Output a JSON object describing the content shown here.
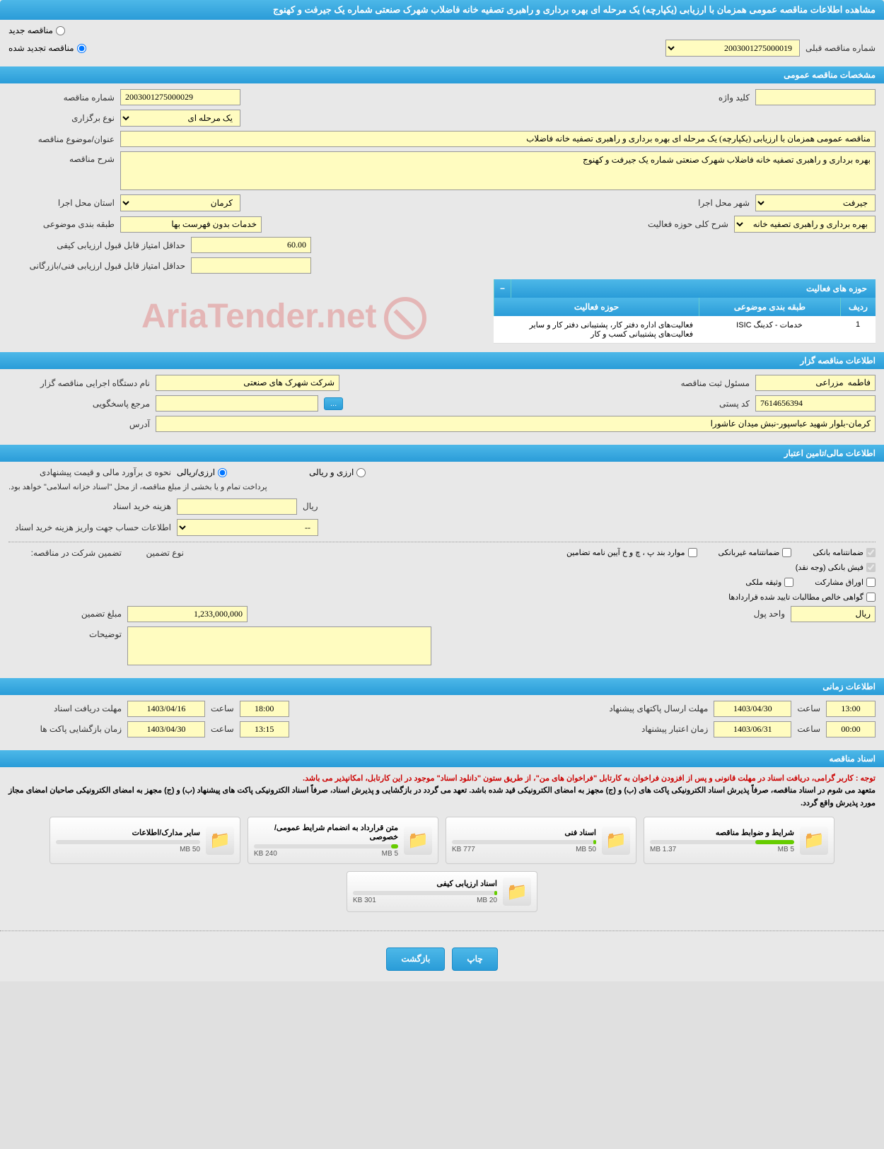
{
  "page_title": "مشاهده اطلاعات مناقصه عمومی همزمان با ارزیابی (یکپارچه) یک مرحله ای بهره برداری و راهبری تصفیه خانه فاضلاب شهرک صنعتی شماره یک جیرفت و کهنوج",
  "top": {
    "radio_new": "مناقصه جدید",
    "radio_renewed": "مناقصه تجدید شده",
    "prev_number_label": "شماره مناقصه قبلی",
    "prev_number": "2003001275000019"
  },
  "section_general": {
    "title": "مشخصات مناقصه عمومی",
    "tender_number_label": "شماره مناقصه",
    "tender_number": "2003001275000029",
    "keyword_label": "کلید واژه",
    "keyword": "",
    "type_label": "نوع برگزاری",
    "type_value": "یک مرحله ای",
    "subject_label": "عنوان/موضوع مناقصه",
    "subject": "مناقصه عمومی همزمان با ارزیابی (یکپارچه) یک مرحله ای بهره برداری و راهبری تصفیه خانه فاضلاب",
    "description_label": "شرح مناقصه",
    "description": "بهره برداری و راهبری تصفیه خانه فاضلاب شهرک صنعتی شماره یک جیرفت و کهنوج",
    "province_label": "استان محل اجرا",
    "province": "کرمان",
    "city_label": "شهر محل اجرا",
    "city": "جیرفت",
    "classification_label": "طبقه بندی موضوعی",
    "classification": "خدمات بدون فهرست بها",
    "activity_scope_label": "شرح کلی حوزه فعالیت",
    "activity_scope": "بهره برداری و راهبری تصفیه خانه فاضلاب شهرک",
    "min_quality_score_label": "حداقل امتیاز قابل قبول ارزیابی کیفی",
    "min_quality_score": "60.00",
    "min_tech_score_label": "حداقل امتیاز قابل قبول ارزیابی فنی/بازرگانی",
    "min_tech_score": ""
  },
  "activity_table": {
    "header": "حوزه های فعالیت",
    "col_row": "ردیف",
    "col_classification": "طبقه بندی موضوعی",
    "col_activity": "حوزه فعالیت",
    "rows": [
      {
        "n": "1",
        "classification": "خدمات - کدینگ ISIC",
        "activity": "فعالیت‌های  اداره دفتر کار، پشتیبانی دفتر کار و سایر فعالیت‌های پشتیبانی کسب و کار"
      }
    ]
  },
  "section_organizer": {
    "title": "اطلاعات مناقصه گزار",
    "org_label": "نام دستگاه اجرایی مناقصه گزار",
    "org": "شرکت شهرک های صنعتی",
    "responsible_label": "مسئول ثبت مناقصه",
    "responsible": "فاطمه  مزراعی",
    "responder_label": "مرجع پاسخگویی",
    "postal_label": "کد پستی",
    "postal": "7614656394",
    "address_label": "آدرس",
    "address": "کرمان-بلوار شهید عباسپور-نبش میدان عاشورا"
  },
  "section_financial": {
    "title": "اطلاعات مالی/تامین اعتبار",
    "price_method_label": "نحوه ی برآورد مالی و قیمت پیشنهادی",
    "radio_rial": "ارزی/ریالی",
    "radio_currency": "ارزی و ریالی",
    "payment_note": "پرداخت تمام و یا بخشی از مبلغ مناقصه، از محل \"اسناد خزانه اسلامی\" خواهد بود.",
    "doc_cost_label": "هزینه خرید اسناد",
    "currency_unit": "ریال",
    "account_info_label": "اطلاعات حساب جهت واریز هزینه خرید اسناد",
    "account_select": "--",
    "guarantee_label": "تضمین شرکت در مناقصه:",
    "guarantee_type_label": "نوع تضمین",
    "chk_bank_guarantee": "ضمانتنامه بانکی",
    "chk_nonbank_guarantee": "ضمانتنامه غیربانکی",
    "chk_items": "موارد بند پ ، چ و خ آیین نامه تضامین",
    "chk_cash": "فیش بانکی (وجه نقد)",
    "chk_bonds": "اوراق مشارکت",
    "chk_property": "وثیقه ملکی",
    "chk_receivables": "گواهی خالص مطالبات تایید شده قراردادها",
    "guarantee_amount_label": "مبلغ تضمین",
    "guarantee_amount": "1,233,000,000",
    "money_unit_label": "واحد پول",
    "money_unit": "ریال",
    "notes_label": "توضیحات"
  },
  "section_time": {
    "title": "اطلاعات زمانی",
    "receive_deadline_label": "مهلت دریافت اسناد",
    "receive_date": "1403/04/16",
    "receive_time": "18:00",
    "submit_deadline_label": "مهلت ارسال پاکتهای پیشنهاد",
    "submit_date": "1403/04/30",
    "submit_time": "13:00",
    "opening_label": "زمان بازگشایی پاکت ها",
    "opening_date": "1403/04/30",
    "opening_time": "13:15",
    "validity_label": "زمان اعتبار پیشنهاد",
    "validity_date": "1403/06/31",
    "validity_time": "00:00",
    "time_label": "ساعت"
  },
  "section_docs": {
    "title": "اسناد مناقصه",
    "notice_prefix": "توجه : ",
    "notice_red": "کاربر گرامی، دریافت اسناد در مهلت قانونی و پس از افزودن فراخوان به کارتابل \"فراخوان های من\"، از طریق ستون \"دانلود اسناد\" موجود در این کارتابل، امکانپذیر می باشد.",
    "notice_black": "متعهد می شوم در اسناد مناقصه، صرفاً پذیرش اسناد الکترونیکی پاکت های (ب) و (ج) مجهز به امضای الکترونیکی قید شده باشد. تعهد می گردد در بازگشایی و پذیرش اسناد، صرفاً اسناد الکترونیکی پاکت های پیشنهاد (ب) و (ج) مجهز به امضای الکترونیکی صاحبان امضای مجاز مورد پذیرش واقع گردد.",
    "files": [
      {
        "title": "شرایط و ضوابط مناقصه",
        "used": "1.37 MB",
        "limit": "5 MB",
        "pct": 27
      },
      {
        "title": "اسناد فنی",
        "used": "777 KB",
        "limit": "50 MB",
        "pct": 2
      },
      {
        "title": "متن قرارداد به انضمام شرایط عمومی/خصوصی",
        "used": "240 KB",
        "limit": "5 MB",
        "pct": 5
      },
      {
        "title": "سایر مدارک/اطلاعات",
        "used": "",
        "limit": "50 MB",
        "pct": 0
      },
      {
        "title": "اسناد ارزیابی کیفی",
        "used": "301 KB",
        "limit": "20 MB",
        "pct": 2
      }
    ]
  },
  "buttons": {
    "print": "چاپ",
    "back": "بازگشت"
  },
  "watermark": "AriaTender.net",
  "colors": {
    "header_bg": "#2a9cd8",
    "input_bg": "#fffcc0",
    "page_bg": "#e8e8e8"
  }
}
